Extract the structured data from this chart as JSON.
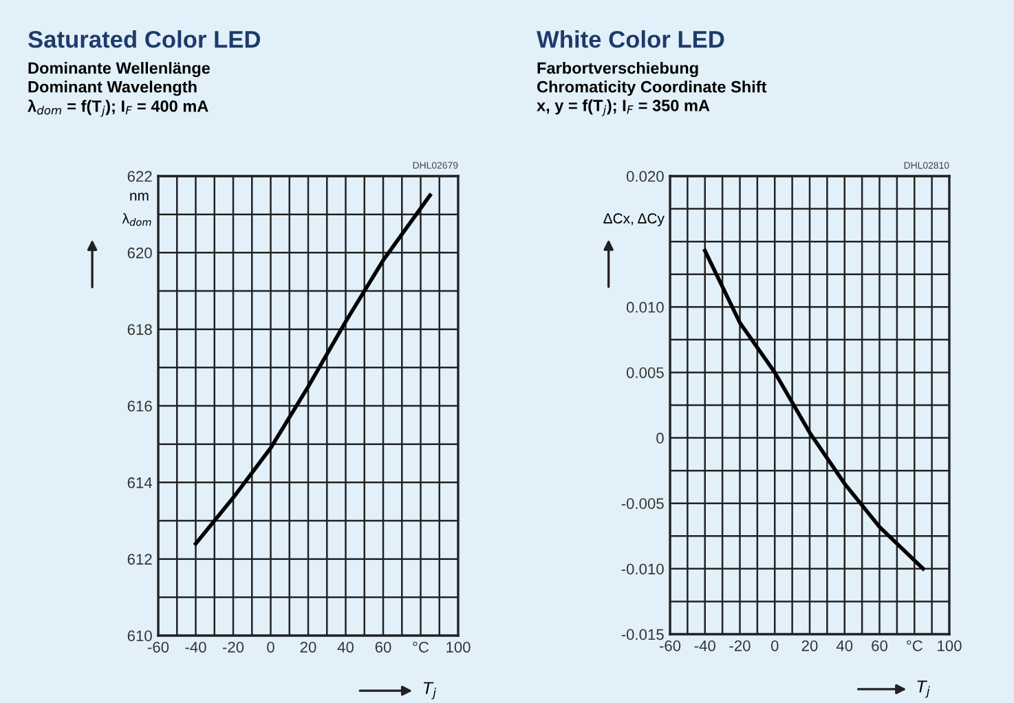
{
  "chart_data": [
    {
      "type": "line",
      "title": "Saturated Color LED",
      "subtitle": "Dominante Wellenlänge\nDominant Wavelength\nλ$_{dom}$ = f(T$_{j}$); I$_{F}$ = 400 mA",
      "xlabel": "T$_{j}$",
      "ylabel": "λ$_{dom}$",
      "annotations": [
        "nm",
        "DHL02679"
      ],
      "x": [
        -40,
        -20,
        0,
        20,
        40,
        60,
        85
      ],
      "series": [
        {
          "color": "#000000",
          "values": [
            612.4,
            613.6,
            614.9,
            616.5,
            618.2,
            619.8,
            621.5
          ]
        }
      ],
      "xlim": [
        -60,
        100
      ],
      "xticks": [
        -60,
        {
          "value": -50,
          "label": null
        },
        -40,
        {
          "value": -30,
          "label": null
        },
        -20,
        {
          "value": -10,
          "label": null
        },
        0,
        {
          "value": 10,
          "label": null
        },
        20,
        {
          "value": 30,
          "label": null
        },
        40,
        {
          "value": 50,
          "label": null
        },
        60,
        {
          "value": 70,
          "label": null
        },
        {
          "value": 80,
          "label": "°C"
        },
        {
          "value": 90,
          "label": null
        },
        100
      ],
      "ylim": [
        610,
        622
      ],
      "yticks": [
        610,
        {
          "value": 611,
          "label": null
        },
        612,
        {
          "value": 613,
          "label": null
        },
        614,
        {
          "value": 615,
          "label": null
        },
        616,
        {
          "value": 617,
          "label": null
        },
        618,
        {
          "value": 619,
          "label": null
        },
        620,
        {
          "value": 621,
          "label": null
        },
        622
      ],
      "grid": true,
      "legend": false,
      "marker": "none",
      "line_style": "solid"
    },
    {
      "type": "line",
      "title": "White Color LED",
      "subtitle": "Farbortverschiebung\nChromaticity Coordinate Shift\nx, y = f(T$_{j}$); I$_{F}$ = 350 mA",
      "xlabel": "T$_{j}$",
      "ylabel": "ΔCx, ΔCy",
      "annotations": [
        "DHL02810"
      ],
      "x": [
        -40,
        -20,
        0,
        20,
        40,
        60,
        85
      ],
      "series": [
        {
          "color": "#000000",
          "values": [
            0.0143,
            0.0088,
            0.005,
            0.0004,
            -0.0035,
            -0.0068,
            -0.01
          ]
        }
      ],
      "xlim": [
        -60,
        100
      ],
      "xticks": [
        -60,
        {
          "value": -50,
          "label": null
        },
        -40,
        {
          "value": -30,
          "label": null
        },
        -20,
        {
          "value": -10,
          "label": null
        },
        0,
        {
          "value": 10,
          "label": null
        },
        20,
        {
          "value": 30,
          "label": null
        },
        40,
        {
          "value": 50,
          "label": null
        },
        60,
        {
          "value": 70,
          "label": null
        },
        {
          "value": 80,
          "label": "°C"
        },
        {
          "value": 90,
          "label": null
        },
        100
      ],
      "ylim": [
        -0.015,
        0.02
      ],
      "yticks": [
        {
          "value": -0.015,
          "label": "-0.015"
        },
        {
          "value": -0.0125,
          "label": null
        },
        {
          "value": -0.01,
          "label": "-0.010"
        },
        {
          "value": -0.0075,
          "label": null
        },
        {
          "value": -0.005,
          "label": "-0.005"
        },
        {
          "value": -0.0025,
          "label": null
        },
        0,
        {
          "value": 0.0025,
          "label": null
        },
        {
          "value": 0.005,
          "label": "0.005"
        },
        {
          "value": 0.0075,
          "label": null
        },
        {
          "value": 0.01,
          "label": "0.010"
        },
        {
          "value": 0.0125,
          "label": null
        },
        {
          "value": 0.015,
          "label": null
        },
        {
          "value": 0.0175,
          "label": null
        },
        {
          "value": 0.02,
          "label": "0.020"
        }
      ],
      "grid": true,
      "legend": false,
      "marker": "none",
      "line_style": "solid"
    }
  ]
}
